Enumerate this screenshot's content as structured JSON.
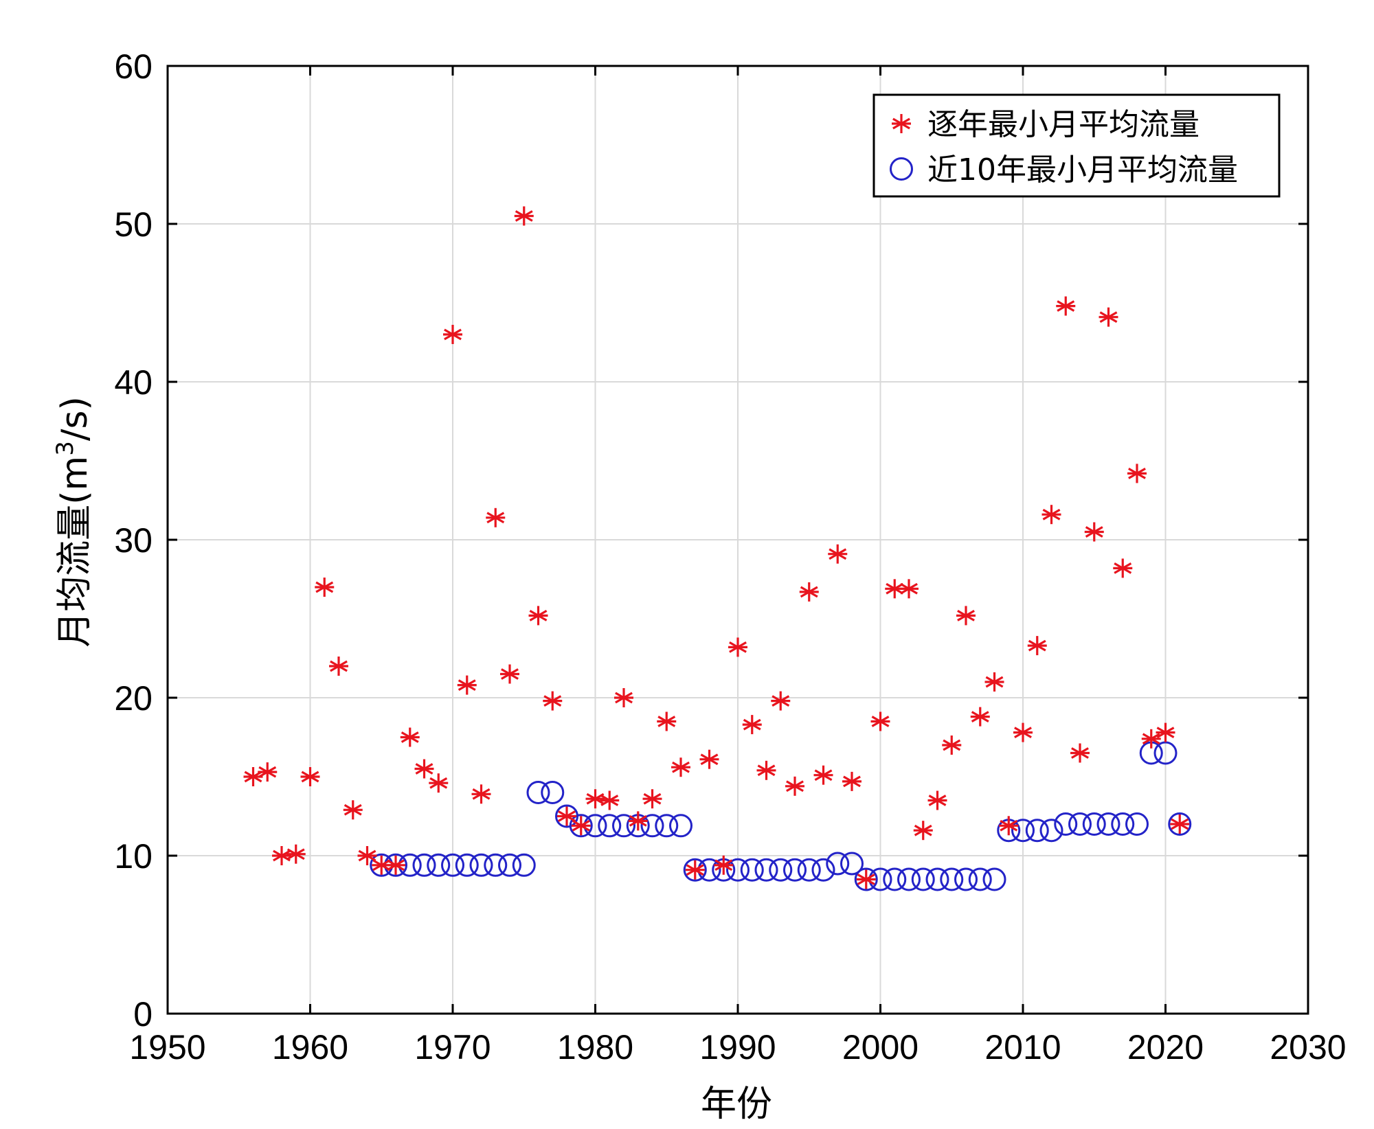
{
  "chart_data": {
    "type": "scatter",
    "title": "",
    "xlabel": "年份",
    "ylabel": "月均流量(m³/s)",
    "ylabel_parts": {
      "main": "月均流量(m",
      "sup": "3",
      "tail": "/s)"
    },
    "xlim": [
      1950,
      2030
    ],
    "ylim": [
      0,
      60
    ],
    "xticks": [
      1950,
      1960,
      1970,
      1980,
      1990,
      2000,
      2010,
      2020,
      2030
    ],
    "yticks": [
      0,
      10,
      20,
      30,
      40,
      50,
      60
    ],
    "grid": true,
    "legend_position": "top-right",
    "colors": {
      "annual": "#e8141e",
      "window": "#2323c8",
      "grid": "#d9d9d9",
      "axis": "#000000"
    },
    "series": [
      {
        "name": "逐年最小月平均流量",
        "marker": "asterisk",
        "points": [
          [
            1956,
            15.0
          ],
          [
            1957,
            15.3
          ],
          [
            1958,
            10.0
          ],
          [
            1959,
            10.1
          ],
          [
            1960,
            15.0
          ],
          [
            1961,
            27.0
          ],
          [
            1962,
            22.0
          ],
          [
            1963,
            12.9
          ],
          [
            1964,
            10.0
          ],
          [
            1965,
            9.4
          ],
          [
            1966,
            9.4
          ],
          [
            1967,
            17.5
          ],
          [
            1968,
            15.5
          ],
          [
            1969,
            14.6
          ],
          [
            1970,
            43.0
          ],
          [
            1971,
            20.8
          ],
          [
            1972,
            13.9
          ],
          [
            1973,
            31.4
          ],
          [
            1974,
            21.5
          ],
          [
            1975,
            50.5
          ],
          [
            1976,
            25.2
          ],
          [
            1977,
            19.8
          ],
          [
            1978,
            12.5
          ],
          [
            1979,
            11.9
          ],
          [
            1980,
            13.6
          ],
          [
            1981,
            13.5
          ],
          [
            1982,
            20.0
          ],
          [
            1983,
            12.2
          ],
          [
            1984,
            13.6
          ],
          [
            1985,
            18.5
          ],
          [
            1986,
            15.6
          ],
          [
            1987,
            9.1
          ],
          [
            1988,
            16.1
          ],
          [
            1989,
            9.4
          ],
          [
            1990,
            23.2
          ],
          [
            1991,
            18.3
          ],
          [
            1992,
            15.4
          ],
          [
            1993,
            19.8
          ],
          [
            1994,
            14.4
          ],
          [
            1995,
            26.7
          ],
          [
            1996,
            15.1
          ],
          [
            1997,
            29.1
          ],
          [
            1998,
            14.7
          ],
          [
            1999,
            8.5
          ],
          [
            2000,
            18.5
          ],
          [
            2001,
            26.9
          ],
          [
            2002,
            26.9
          ],
          [
            2003,
            11.6
          ],
          [
            2004,
            13.5
          ],
          [
            2005,
            17.0
          ],
          [
            2006,
            25.2
          ],
          [
            2007,
            18.8
          ],
          [
            2008,
            21.0
          ],
          [
            2009,
            11.9
          ],
          [
            2010,
            17.8
          ],
          [
            2011,
            23.3
          ],
          [
            2012,
            31.6
          ],
          [
            2013,
            44.8
          ],
          [
            2014,
            16.5
          ],
          [
            2015,
            30.5
          ],
          [
            2016,
            44.1
          ],
          [
            2017,
            28.2
          ],
          [
            2018,
            34.2
          ],
          [
            2019,
            17.4
          ],
          [
            2020,
            17.8
          ],
          [
            2021,
            12.0
          ]
        ]
      },
      {
        "name": "近10年最小月平均流量",
        "marker": "circle",
        "points": [
          [
            1965,
            9.4
          ],
          [
            1966,
            9.4
          ],
          [
            1967,
            9.4
          ],
          [
            1968,
            9.4
          ],
          [
            1969,
            9.4
          ],
          [
            1970,
            9.4
          ],
          [
            1971,
            9.4
          ],
          [
            1972,
            9.4
          ],
          [
            1973,
            9.4
          ],
          [
            1974,
            9.4
          ],
          [
            1975,
            9.4
          ],
          [
            1976,
            14.0
          ],
          [
            1977,
            14.0
          ],
          [
            1978,
            12.5
          ],
          [
            1979,
            11.9
          ],
          [
            1980,
            11.9
          ],
          [
            1981,
            11.9
          ],
          [
            1982,
            11.9
          ],
          [
            1983,
            11.9
          ],
          [
            1984,
            11.9
          ],
          [
            1985,
            11.9
          ],
          [
            1986,
            11.9
          ],
          [
            1987,
            9.1
          ],
          [
            1988,
            9.1
          ],
          [
            1989,
            9.1
          ],
          [
            1990,
            9.1
          ],
          [
            1991,
            9.1
          ],
          [
            1992,
            9.1
          ],
          [
            1993,
            9.1
          ],
          [
            1994,
            9.1
          ],
          [
            1995,
            9.1
          ],
          [
            1996,
            9.1
          ],
          [
            1997,
            9.5
          ],
          [
            1998,
            9.5
          ],
          [
            1999,
            8.5
          ],
          [
            2000,
            8.5
          ],
          [
            2001,
            8.5
          ],
          [
            2002,
            8.5
          ],
          [
            2003,
            8.5
          ],
          [
            2004,
            8.5
          ],
          [
            2005,
            8.5
          ],
          [
            2006,
            8.5
          ],
          [
            2007,
            8.5
          ],
          [
            2008,
            8.5
          ],
          [
            2009,
            11.6
          ],
          [
            2010,
            11.6
          ],
          [
            2011,
            11.6
          ],
          [
            2012,
            11.6
          ],
          [
            2013,
            12.0
          ],
          [
            2014,
            12.0
          ],
          [
            2015,
            12.0
          ],
          [
            2016,
            12.0
          ],
          [
            2017,
            12.0
          ],
          [
            2018,
            12.0
          ],
          [
            2019,
            16.5
          ],
          [
            2020,
            16.5
          ],
          [
            2021,
            12.0
          ]
        ]
      }
    ]
  }
}
